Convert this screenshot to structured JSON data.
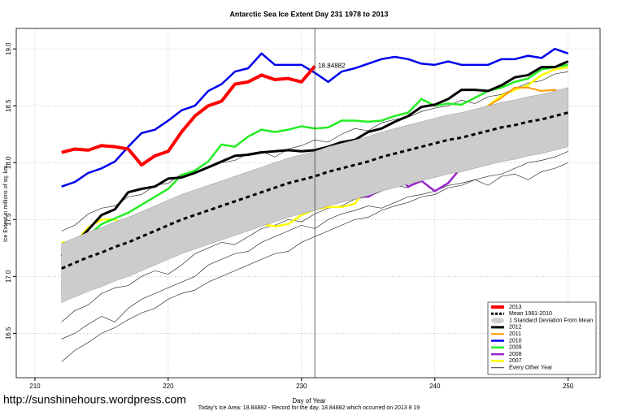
{
  "chart_data": {
    "type": "line",
    "title": "Antarctic Sea Ice Extent Day 231 1978 to 2013",
    "x_label": "Day of Year",
    "y_label": "Ice Extent in millions of sq. km.",
    "footer": "Today's Ice Area: 18.84882  - Record for the day. 18.84882 which occurred on 2013 8 19",
    "watermark": "http://sunshinehours.wordpress.com",
    "annotation": {
      "x": 231,
      "text": "18.84882",
      "color": "#ff0000"
    },
    "vline": 231,
    "xlim": [
      208.6,
      252.4
    ],
    "ylim": [
      16.11,
      19.18
    ],
    "xticks": [
      210,
      220,
      230,
      240,
      250
    ],
    "yticks": [
      16.5,
      {
        "value": 17,
        "label": "17.0"
      },
      17.5,
      {
        "value": 18,
        "label": "18.0"
      },
      18.5,
      {
        "value": 19,
        "label": "19.0"
      }
    ],
    "grid": true,
    "legend": "bottom-right",
    "x": [
      212,
      213,
      214,
      215,
      216,
      217,
      218,
      219,
      220,
      221,
      222,
      223,
      224,
      225,
      226,
      227,
      228,
      229,
      230,
      231,
      232,
      233,
      234,
      235,
      236,
      237,
      238,
      239,
      240,
      241,
      242,
      243,
      244,
      245,
      246,
      247,
      248,
      249,
      250
    ],
    "series": [
      {
        "name": "2013",
        "color": "#ff0000",
        "width": 4,
        "values": [
          18.09,
          18.12,
          18.11,
          18.15,
          18.14,
          18.12,
          17.98,
          18.06,
          18.1,
          18.27,
          18.41,
          18.5,
          18.54,
          18.69,
          18.71,
          18.77,
          18.73,
          18.74,
          18.71,
          18.84882,
          null,
          null,
          null,
          null,
          null,
          null,
          null,
          null,
          null,
          null,
          null,
          null,
          null,
          null,
          null,
          null,
          null,
          null,
          null
        ]
      },
      {
        "name": "Mean 1981-2010",
        "color": "#000000",
        "width": 3,
        "dashed": true,
        "values": [
          17.07,
          17.12,
          17.17,
          17.21,
          17.26,
          17.3,
          17.35,
          17.4,
          17.45,
          17.5,
          17.54,
          17.58,
          17.62,
          17.66,
          17.7,
          17.74,
          17.78,
          17.82,
          17.85,
          17.88,
          17.92,
          17.95,
          17.98,
          18.01,
          18.05,
          18.08,
          18.11,
          18.14,
          18.17,
          18.2,
          18.22,
          18.25,
          18.28,
          18.31,
          18.33,
          18.36,
          18.38,
          18.41,
          18.44
        ]
      },
      {
        "name": "1 Standard Deviation From Mean",
        "color": "#cccccc",
        "band": true,
        "upper": [
          17.29,
          17.34,
          17.39,
          17.43,
          17.48,
          17.52,
          17.57,
          17.62,
          17.67,
          17.72,
          17.76,
          17.8,
          17.84,
          17.88,
          17.92,
          17.96,
          18.0,
          18.04,
          18.07,
          18.1,
          18.14,
          18.17,
          18.2,
          18.23,
          18.27,
          18.3,
          18.33,
          18.36,
          18.39,
          18.42,
          18.44,
          18.47,
          18.5,
          18.53,
          18.55,
          18.58,
          18.6,
          18.63,
          18.66
        ],
        "lower": [
          16.77,
          16.82,
          16.87,
          16.91,
          16.96,
          17.0,
          17.05,
          17.1,
          17.15,
          17.2,
          17.24,
          17.28,
          17.32,
          17.36,
          17.4,
          17.44,
          17.48,
          17.52,
          17.55,
          17.58,
          17.62,
          17.65,
          17.68,
          17.71,
          17.75,
          17.78,
          17.81,
          17.84,
          17.87,
          17.9,
          17.92,
          17.95,
          17.98,
          18.01,
          18.03,
          18.06,
          18.08,
          18.11,
          18.14
        ]
      },
      {
        "name": "2012",
        "color": "#000000",
        "width": 3,
        "values": [
          17.18,
          17.29,
          17.41,
          17.54,
          17.59,
          17.74,
          17.77,
          17.79,
          17.86,
          17.87,
          17.91,
          17.96,
          18.01,
          18.06,
          18.07,
          18.09,
          18.1,
          18.11,
          18.1,
          18.11,
          18.14,
          18.18,
          18.2,
          18.27,
          18.3,
          18.36,
          18.41,
          18.49,
          18.51,
          18.56,
          18.64,
          18.64,
          18.63,
          18.68,
          18.75,
          18.77,
          18.84,
          18.84,
          18.89
        ]
      },
      {
        "name": "2011",
        "color": "#ff9900",
        "width": 2,
        "values": [
          17.14,
          17.21,
          17.29,
          17.41,
          17.46,
          17.46,
          17.5,
          17.51,
          17.56,
          17.56,
          17.56,
          17.59,
          17.66,
          17.73,
          17.79,
          17.86,
          17.93,
          17.96,
          18.0,
          18.04,
          18.11,
          18.13,
          18.14,
          17.91,
          17.94,
          18.04,
          18.07,
          18.14,
          18.18,
          18.21,
          18.29,
          18.39,
          18.5,
          18.57,
          18.66,
          18.66,
          18.63,
          18.64,
          18.59
        ]
      },
      {
        "name": "2010",
        "color": "#0000ee",
        "width": 2.5,
        "values": [
          17.79,
          17.83,
          17.91,
          17.95,
          18.01,
          18.14,
          18.26,
          18.29,
          18.37,
          18.46,
          18.5,
          18.63,
          18.69,
          18.8,
          18.83,
          18.96,
          18.86,
          18.86,
          18.86,
          18.79,
          18.71,
          18.8,
          18.83,
          18.87,
          18.91,
          18.93,
          18.91,
          18.87,
          18.86,
          18.89,
          18.86,
          18.86,
          18.86,
          18.91,
          18.91,
          18.94,
          18.92,
          19.0,
          18.96
        ]
      },
      {
        "name": "2009",
        "color": "#22ee22",
        "width": 2.5,
        "values": [
          17.14,
          17.21,
          17.36,
          17.46,
          17.51,
          17.56,
          17.63,
          17.7,
          17.77,
          17.89,
          17.93,
          18.01,
          18.16,
          18.14,
          18.23,
          18.29,
          18.27,
          18.29,
          18.32,
          18.3,
          18.31,
          18.37,
          18.37,
          18.36,
          18.37,
          18.41,
          18.44,
          18.56,
          18.5,
          18.52,
          18.51,
          18.57,
          18.63,
          18.66,
          18.71,
          18.74,
          18.82,
          18.84,
          18.86
        ]
      },
      {
        "name": "2008",
        "color": "#9922cc",
        "width": 2.5,
        "values": [
          16.93,
          17.04,
          17.07,
          17.06,
          17.13,
          17.16,
          17.23,
          17.29,
          17.43,
          17.5,
          17.51,
          17.64,
          17.77,
          17.87,
          17.91,
          17.93,
          17.84,
          17.79,
          17.82,
          17.79,
          17.71,
          17.73,
          17.71,
          17.7,
          17.77,
          17.89,
          17.79,
          17.84,
          17.75,
          17.82,
          17.96,
          18.11,
          18.11,
          18.18,
          18.3,
          18.3,
          18.29,
          18.27,
          18.27
        ]
      },
      {
        "name": "2007",
        "color": "#ffff00",
        "width": 2.5,
        "values": [
          17.3,
          17.3,
          17.43,
          17.5,
          17.5,
          17.43,
          17.37,
          17.38,
          17.44,
          17.57,
          17.59,
          17.56,
          17.51,
          17.49,
          17.51,
          17.46,
          17.44,
          17.46,
          17.54,
          17.59,
          17.61,
          17.61,
          17.64,
          17.8,
          17.96,
          17.93,
          18.07,
          18.18,
          18.29,
          18.32,
          18.36,
          18.41,
          18.5,
          18.59,
          18.64,
          18.68,
          18.77,
          18.82,
          18.84
        ]
      },
      {
        "name": "Every Other Year",
        "color": "#333333",
        "width": 0.7,
        "multi": true,
        "values": [
          [
            16.25,
            16.35,
            16.42,
            16.5,
            16.55,
            16.62,
            16.68,
            16.72,
            16.8,
            16.85,
            16.88,
            16.95,
            17.0,
            17.05,
            17.1,
            17.15,
            17.2,
            17.22,
            17.3,
            17.35,
            17.4,
            17.45,
            17.5,
            17.52,
            17.58,
            17.62,
            17.65,
            17.7,
            17.72,
            17.78,
            17.8,
            17.85,
            17.88,
            17.9,
            17.95,
            18.0,
            18.02,
            18.05,
            18.1
          ],
          [
            17.4,
            17.45,
            17.55,
            17.6,
            17.62,
            17.7,
            17.72,
            17.8,
            17.82,
            17.9,
            17.92,
            17.95,
            18.0,
            18.02,
            18.08,
            18.1,
            18.05,
            18.12,
            18.15,
            18.2,
            18.18,
            18.25,
            18.3,
            18.28,
            18.35,
            18.38,
            18.4,
            18.45,
            18.48,
            18.5,
            18.55,
            18.52,
            18.58,
            18.6,
            18.65,
            18.7,
            18.72,
            18.78,
            18.8
          ],
          [
            16.6,
            16.7,
            16.75,
            16.85,
            16.9,
            16.92,
            17.0,
            17.05,
            17.02,
            17.1,
            17.2,
            17.25,
            17.3,
            17.28,
            17.35,
            17.42,
            17.45,
            17.5,
            17.48,
            17.55,
            17.6,
            17.62,
            17.68,
            17.7,
            17.75,
            17.8,
            17.78,
            17.85,
            17.9,
            17.92,
            17.95,
            17.98,
            18.02,
            18.05,
            18.08,
            18.12,
            18.15,
            18.18,
            18.2
          ],
          [
            16.45,
            16.5,
            16.58,
            16.65,
            16.6,
            16.72,
            16.8,
            16.85,
            16.9,
            16.95,
            17.0,
            17.1,
            17.15,
            17.2,
            17.22,
            17.3,
            17.35,
            17.4,
            17.45,
            17.42,
            17.5,
            17.55,
            17.58,
            17.62,
            17.6,
            17.65,
            17.7,
            17.72,
            17.75,
            17.8,
            17.82,
            17.85,
            17.8,
            17.88,
            17.9,
            17.85,
            17.92,
            17.95,
            18.0
          ]
        ]
      }
    ]
  }
}
